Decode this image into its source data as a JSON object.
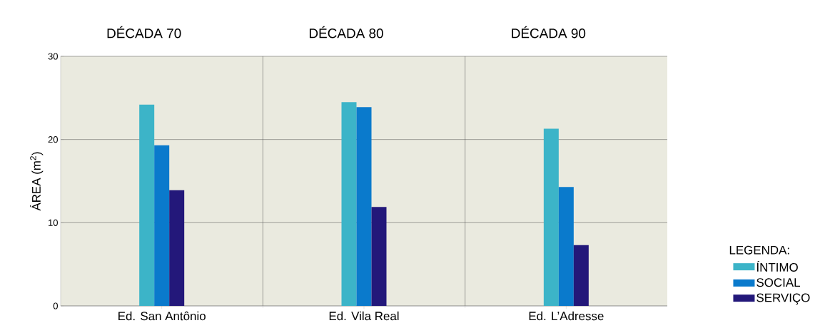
{
  "chart_data": {
    "type": "bar",
    "categories": [
      "Ed. San Antônio",
      "Ed. Vila Real",
      "Ed. L’Adresse"
    ],
    "annotations": [
      "DÉCADA 70",
      "DÉCADA 80",
      "DÉCADA 90"
    ],
    "ylabel": "ÁREA (m$^{2}$)",
    "legend_title": "LEGENDA:",
    "series": [
      {
        "name": "ÍNTIMO",
        "color": "#3cb4c8",
        "values": [
          24.2,
          24.5,
          21.3
        ]
      },
      {
        "name": "SOCIAL",
        "color": "#0a7acc",
        "values": [
          19.3,
          23.9,
          14.3
        ]
      },
      {
        "name": "SERVIÇO",
        "color": "#23187a",
        "values": [
          13.9,
          11.9,
          7.3
        ]
      }
    ],
    "ylim": [
      0,
      30
    ],
    "yticks": [
      0,
      10,
      20,
      30
    ],
    "grid": true,
    "legend": "right"
  }
}
